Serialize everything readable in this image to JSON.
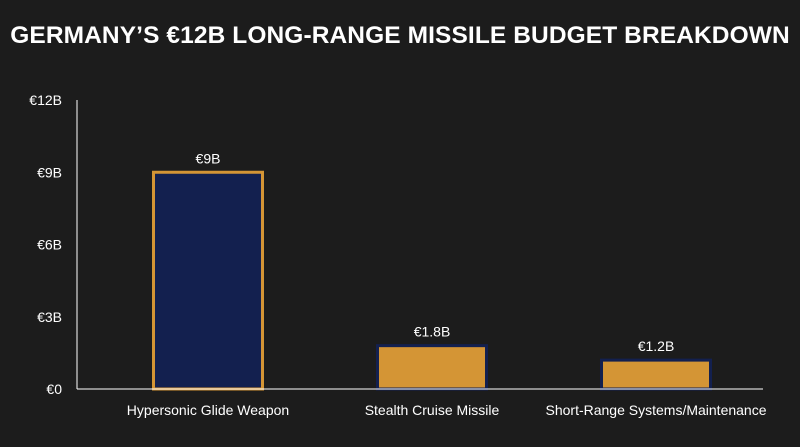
{
  "chart_data": {
    "type": "bar",
    "title": "GERMANY’S €12B LONG-RANGE MISSILE BUDGET BREAKDOWN",
    "xlabel": "",
    "ylabel": "",
    "categories": [
      "Hypersonic Glide Weapon",
      "Stealth Cruise Missile",
      "Short-Range Systems/Maintenance"
    ],
    "values": [
      9,
      1.8,
      1.2
    ],
    "value_labels": [
      "€9B",
      "€1.8B",
      "€1.2B"
    ],
    "ylim": [
      0,
      12
    ],
    "y_ticks": [
      0,
      3,
      6,
      9,
      12
    ],
    "y_tick_labels": [
      "€0",
      "€3B",
      "€6B",
      "€9B",
      "€12B"
    ],
    "grid": false,
    "colors": {
      "background": "#1c1c1c",
      "text": "#ffffff",
      "axis": "#ffffff",
      "bar_fills": [
        "#13204f",
        "#d49535",
        "#d49535"
      ],
      "bar_strokes": [
        "#d49535",
        "#13204f",
        "#13204f"
      ]
    }
  }
}
